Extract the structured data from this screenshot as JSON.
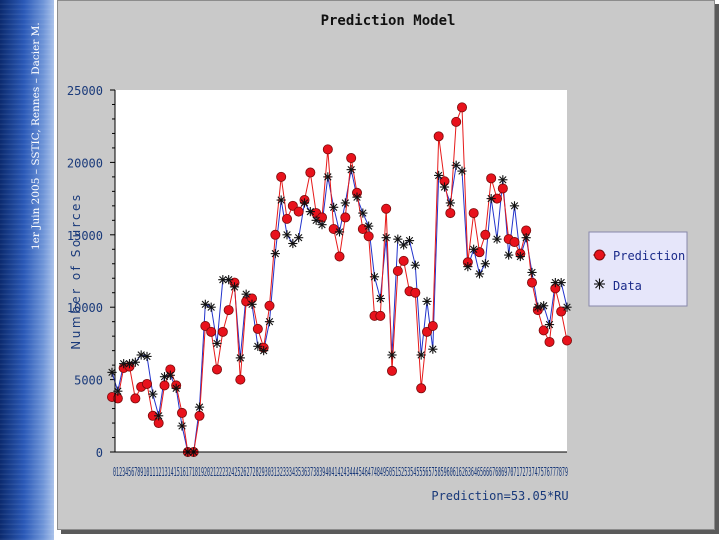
{
  "slide": {
    "footer": "1er Juin 2005 – SSTIC, Rennes – Dacier M."
  },
  "chart_data": {
    "type": "line",
    "title": "Prediction Model",
    "ylabel": "Number of Sources",
    "xlabel": "Prediction=53.05*RU",
    "ylim": [
      0,
      25000
    ],
    "yticks": [
      0,
      5000,
      10000,
      15000,
      20000,
      25000
    ],
    "xtick_text": "012345678910111213141516171819202122232425262728293031323334353637383940414243444546474849505152535455565758596061626364656667686970717273747576777879",
    "legend_position": "right",
    "series": [
      {
        "name": "Prediction",
        "color": "#e8121c",
        "marker": "circle",
        "values": [
          3800,
          3700,
          5800,
          5900,
          3700,
          4500,
          4700,
          2500,
          2000,
          4600,
          5700,
          4600,
          2700,
          0,
          0,
          2500,
          8700,
          8300,
          5700,
          8300,
          9800,
          11700,
          5000,
          10400,
          10600,
          8500,
          7200,
          10100,
          15000,
          19000,
          16100,
          17000,
          16600,
          17400,
          19300,
          16500,
          16200,
          20900,
          15400,
          13500,
          16200,
          20300,
          17900,
          15400,
          14900,
          9400,
          9400,
          16800,
          5600,
          12500,
          13200,
          11100,
          11000,
          4400,
          8300,
          8700,
          21800,
          18700,
          16500,
          22800,
          23800,
          13100,
          16500,
          13800,
          15000,
          18900,
          17500,
          18200,
          14700,
          14500,
          13700,
          15300,
          11700,
          9800,
          8400,
          7600,
          11300,
          9700,
          7700
        ]
      },
      {
        "name": "Data",
        "color": "#111111",
        "marker": "asterisk",
        "values": [
          5500,
          4200,
          6100,
          6100,
          6200,
          6700,
          6600,
          4000,
          2500,
          5200,
          5300,
          4400,
          1800,
          0,
          0,
          3100,
          10200,
          10000,
          7500,
          11900,
          11900,
          11400,
          6500,
          10900,
          10200,
          7300,
          7000,
          9000,
          13700,
          17400,
          15000,
          14400,
          14800,
          17200,
          16600,
          16000,
          15700,
          19000,
          16900,
          15200,
          17200,
          19500,
          17600,
          16500,
          15600,
          12100,
          10600,
          14800,
          6700,
          14700,
          14300,
          14600,
          12900,
          6700,
          10400,
          7100,
          19100,
          18300,
          17200,
          19800,
          19400,
          12800,
          14000,
          12300,
          13000,
          17500,
          14700,
          18800,
          13600,
          17000,
          13500,
          14800,
          12400,
          10000,
          10100,
          8800,
          11700,
          11700,
          10000
        ]
      }
    ]
  }
}
